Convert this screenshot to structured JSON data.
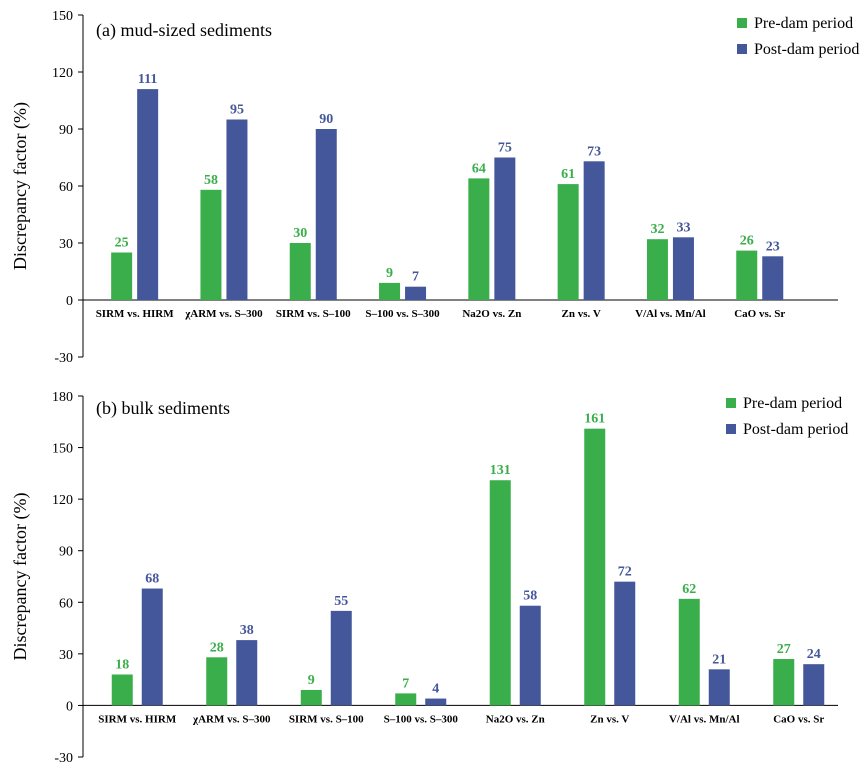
{
  "colors": {
    "pre": "#3aae4a",
    "post": "#44579a",
    "axis": "#000000"
  },
  "chart_data": [
    {
      "type": "bar",
      "title": "(a) mud-sized sediments",
      "ylabel": "Discrepancy factor (%)",
      "ylim": [
        -30,
        150
      ],
      "yticks": [
        -30,
        0,
        30,
        60,
        90,
        120,
        150
      ],
      "grid": false,
      "legend_position": "top-right",
      "categories": [
        "SIRM vs. HIRM",
        "χARM vs. S–300",
        "SIRM vs. S–100",
        "S–100 vs. S–300",
        "Na2O vs. Zn",
        "Zn vs. V",
        "V/Al vs. Mn/Al",
        "CaO vs. Sr"
      ],
      "series": [
        {
          "name": "Pre-dam period",
          "color": "#3aae4a",
          "values": [
            25,
            58,
            30,
            9,
            64,
            61,
            32,
            26
          ]
        },
        {
          "name": "Post-dam period",
          "color": "#44579a",
          "values": [
            111,
            95,
            90,
            7,
            75,
            73,
            33,
            23
          ]
        }
      ]
    },
    {
      "type": "bar",
      "title": "(b) bulk sediments",
      "ylabel": "Discrepancy factor (%)",
      "ylim": [
        -30,
        180
      ],
      "yticks": [
        -30,
        0,
        30,
        60,
        90,
        120,
        150,
        180
      ],
      "grid": false,
      "legend_position": "top-right",
      "categories": [
        "SIRM vs. HIRM",
        "χARM vs. S–300",
        "SIRM vs. S–100",
        "S–100 vs. S–300",
        "Na2O vs. Zn",
        "Zn vs. V",
        "V/Al vs. Mn/Al",
        "CaO vs. Sr"
      ],
      "series": [
        {
          "name": "Pre-dam period",
          "color": "#3aae4a",
          "values": [
            18,
            28,
            9,
            7,
            131,
            161,
            62,
            27
          ]
        },
        {
          "name": "Post-dam period",
          "color": "#44579a",
          "values": [
            68,
            38,
            55,
            4,
            58,
            72,
            21,
            24
          ]
        }
      ]
    }
  ]
}
